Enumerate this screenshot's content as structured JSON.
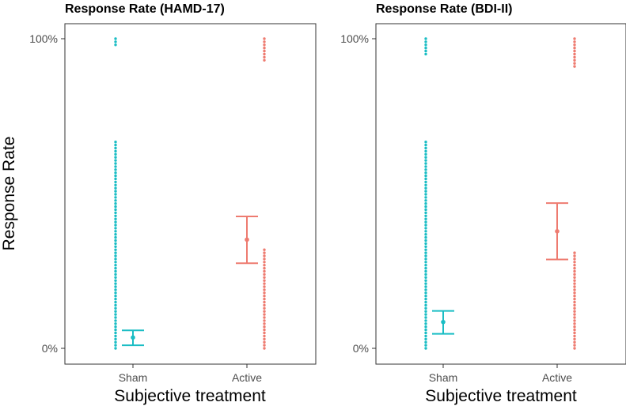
{
  "chart_data": [
    {
      "type": "scatter",
      "title": "Response Rate (HAMD-17)",
      "xlabel": "Subjective treatment",
      "ylabel": "Response Rate",
      "categories": [
        "Sham",
        "Active"
      ],
      "y_ticks": [
        "0%",
        "100%"
      ],
      "ylim": [
        0,
        1
      ],
      "colors": {
        "Sham": "#1ABDC4",
        "Active": "#EE7B70"
      },
      "point_groups": [
        {
          "category": "Sham",
          "value": 0,
          "count": 68
        },
        {
          "category": "Sham",
          "value": 1,
          "count": 3
        },
        {
          "category": "Active",
          "value": 0,
          "count": 33
        },
        {
          "category": "Active",
          "value": 1,
          "count": 8
        }
      ],
      "summary": [
        {
          "category": "Sham",
          "mean": 0.035,
          "lower": 0.01,
          "upper": 0.058
        },
        {
          "category": "Active",
          "mean": 0.351,
          "lower": 0.275,
          "upper": 0.426
        }
      ]
    },
    {
      "type": "scatter",
      "title": "Response Rate (BDI-II)",
      "xlabel": "Subjective treatment",
      "ylabel": "",
      "categories": [
        "Sham",
        "Active"
      ],
      "y_ticks": [
        "0%",
        "100%"
      ],
      "ylim": [
        0,
        1
      ],
      "colors": {
        "Sham": "#1ABDC4",
        "Active": "#EE7B70"
      },
      "point_groups": [
        {
          "category": "Sham",
          "value": 0,
          "count": 68
        },
        {
          "category": "Sham",
          "value": 1,
          "count": 6
        },
        {
          "category": "Active",
          "value": 0,
          "count": 32
        },
        {
          "category": "Active",
          "value": 1,
          "count": 10
        }
      ],
      "summary": [
        {
          "category": "Sham",
          "mean": 0.085,
          "lower": 0.047,
          "upper": 0.121
        },
        {
          "category": "Active",
          "mean": 0.378,
          "lower": 0.287,
          "upper": 0.469
        }
      ]
    }
  ]
}
